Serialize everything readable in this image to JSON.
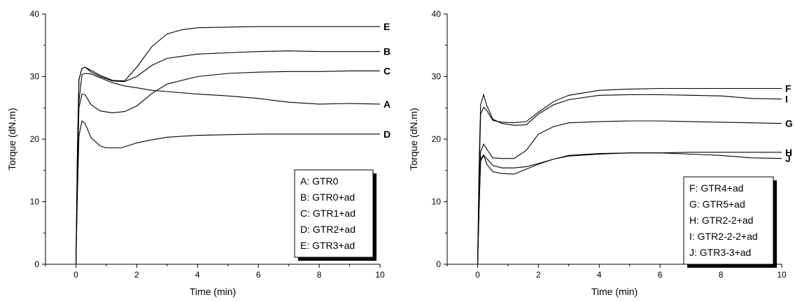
{
  "chart_data": [
    {
      "type": "line",
      "xlabel": "Time (min)",
      "ylabel": "Torque (dN.m)",
      "xlim": [
        -1,
        10
      ],
      "ylim": [
        0,
        40
      ],
      "xticks": [
        0,
        2,
        4,
        6,
        8,
        10
      ],
      "yticks": [
        0,
        10,
        20,
        30,
        40
      ],
      "legend_position": "bottom-right",
      "legend": [
        "A: GTR0",
        "B: GTR0+ad",
        "C: GTR1+ad",
        "D: GTR2+ad",
        "E: GTR3+ad"
      ],
      "series": [
        {
          "label": "A",
          "x": [
            0,
            0.05,
            0.1,
            0.2,
            0.3,
            0.5,
            0.8,
            1.2,
            1.6,
            2.0,
            2.5,
            3.0,
            4.0,
            5.0,
            6.0,
            7.0,
            8.0,
            9.0,
            10.0
          ],
          "y": [
            0,
            14,
            26,
            30.3,
            30.5,
            30.4,
            29.8,
            29.0,
            28.5,
            28.2,
            27.8,
            27.6,
            27.2,
            26.9,
            26.5,
            25.9,
            25.6,
            25.7,
            25.6
          ]
        },
        {
          "label": "B",
          "x": [
            0,
            0.05,
            0.1,
            0.2,
            0.3,
            0.5,
            0.8,
            1.2,
            1.6,
            2.0,
            2.5,
            3.0,
            4.0,
            5.0,
            6.0,
            7.0,
            8.0,
            9.0,
            10.0
          ],
          "y": [
            0,
            18,
            29.5,
            31.3,
            31.5,
            30.7,
            30.0,
            29.3,
            29.2,
            30.0,
            31.8,
            32.9,
            33.6,
            33.8,
            34.0,
            34.1,
            34.0,
            34.0,
            34.0
          ]
        },
        {
          "label": "C",
          "x": [
            0,
            0.05,
            0.1,
            0.2,
            0.3,
            0.5,
            0.8,
            1.2,
            1.6,
            2.0,
            2.5,
            3.0,
            4.0,
            5.0,
            6.0,
            7.0,
            8.0,
            9.0,
            10.0
          ],
          "y": [
            0,
            14,
            25,
            27.2,
            27.1,
            25.5,
            24.5,
            24.2,
            24.4,
            25.3,
            27.3,
            28.8,
            30.0,
            30.5,
            30.7,
            30.8,
            30.8,
            30.9,
            30.9
          ]
        },
        {
          "label": "D",
          "x": [
            0,
            0.05,
            0.1,
            0.2,
            0.3,
            0.5,
            0.8,
            1.0,
            1.5,
            2.0,
            2.5,
            3.0,
            4.0,
            5.0,
            6.0,
            7.0,
            8.0,
            9.0,
            10.0
          ],
          "y": [
            0,
            11,
            20.5,
            22.9,
            22.5,
            20.2,
            18.9,
            18.6,
            18.6,
            19.4,
            19.9,
            20.3,
            20.6,
            20.7,
            20.8,
            20.8,
            20.8,
            20.8,
            20.8
          ]
        },
        {
          "label": "E",
          "x": [
            0,
            0.05,
            0.1,
            0.2,
            0.3,
            0.5,
            0.8,
            1.2,
            1.6,
            2.0,
            2.5,
            3.0,
            3.5,
            4.0,
            5.0,
            6.0,
            7.0,
            8.0,
            9.0,
            10.0
          ],
          "y": [
            0,
            18,
            29.5,
            31.3,
            31.5,
            31.0,
            30.2,
            29.4,
            29.3,
            31.5,
            34.8,
            36.8,
            37.5,
            37.8,
            37.9,
            38.0,
            38.0,
            38.0,
            38.0,
            38.0
          ]
        }
      ]
    },
    {
      "type": "line",
      "xlabel": "Time (min)",
      "ylabel": "Torque (dN.m)",
      "xlim": [
        -1,
        10
      ],
      "ylim": [
        0,
        40
      ],
      "xticks": [
        0,
        2,
        4,
        6,
        8,
        10
      ],
      "yticks": [
        0,
        10,
        20,
        30,
        40
      ],
      "legend_position": "bottom-right",
      "legend": [
        "F: GTR4+ad",
        "G: GTR5+ad",
        "H: GTR2-2+ad",
        "I: GTR2-2-2+ad",
        "J: GTR3-3+ad"
      ],
      "series": [
        {
          "label": "F",
          "x": [
            0,
            0.05,
            0.1,
            0.2,
            0.3,
            0.5,
            0.8,
            1.2,
            1.6,
            2.0,
            2.5,
            3.0,
            4.0,
            5.0,
            6.0,
            7.0,
            8.0,
            9.0,
            10.0
          ],
          "y": [
            0,
            14,
            24,
            25.1,
            24.6,
            23.0,
            22.7,
            22.6,
            22.8,
            24.3,
            26.0,
            27.0,
            27.8,
            28.0,
            28.1,
            28.1,
            28.1,
            28.1,
            28.1
          ]
        },
        {
          "label": "G",
          "x": [
            0,
            0.05,
            0.1,
            0.2,
            0.3,
            0.5,
            0.8,
            1.2,
            1.6,
            2.0,
            2.5,
            3.0,
            4.0,
            5.0,
            6.0,
            7.0,
            8.0,
            9.0,
            10.0
          ],
          "y": [
            0,
            10,
            18,
            19.2,
            18.4,
            17.0,
            16.9,
            16.9,
            18.2,
            20.8,
            22.0,
            22.6,
            22.8,
            22.9,
            22.9,
            22.8,
            22.7,
            22.6,
            22.5
          ]
        },
        {
          "label": "H",
          "x": [
            0,
            0.05,
            0.1,
            0.2,
            0.3,
            0.5,
            0.8,
            1.2,
            1.6,
            2.0,
            2.5,
            3.0,
            4.0,
            5.0,
            6.0,
            7.0,
            8.0,
            9.0,
            10.0
          ],
          "y": [
            0,
            9,
            16.5,
            17.4,
            16.9,
            15.8,
            15.4,
            15.4,
            15.6,
            16.1,
            16.8,
            17.3,
            17.6,
            17.8,
            17.8,
            17.9,
            17.9,
            17.9,
            17.9
          ]
        },
        {
          "label": "I",
          "x": [
            0,
            0.05,
            0.1,
            0.2,
            0.3,
            0.5,
            0.8,
            1.2,
            1.6,
            2.0,
            2.5,
            3.0,
            4.0,
            5.0,
            6.0,
            7.0,
            8.0,
            9.0,
            10.0
          ],
          "y": [
            0,
            16,
            25.5,
            27.1,
            25.4,
            23.2,
            22.5,
            22.2,
            22.3,
            24.0,
            25.5,
            26.3,
            27.0,
            27.1,
            27.1,
            27.0,
            26.9,
            26.5,
            26.4
          ]
        },
        {
          "label": "J",
          "x": [
            0,
            0.05,
            0.1,
            0.2,
            0.3,
            0.5,
            0.8,
            1.2,
            1.6,
            2.0,
            2.5,
            3.0,
            4.0,
            5.0,
            6.0,
            7.0,
            8.0,
            9.0,
            10.0
          ],
          "y": [
            0,
            9,
            16.8,
            17.5,
            16.0,
            14.8,
            14.5,
            14.4,
            15.2,
            16.0,
            16.8,
            17.4,
            17.7,
            17.8,
            17.8,
            17.6,
            17.4,
            17.0,
            16.9
          ]
        }
      ]
    }
  ]
}
